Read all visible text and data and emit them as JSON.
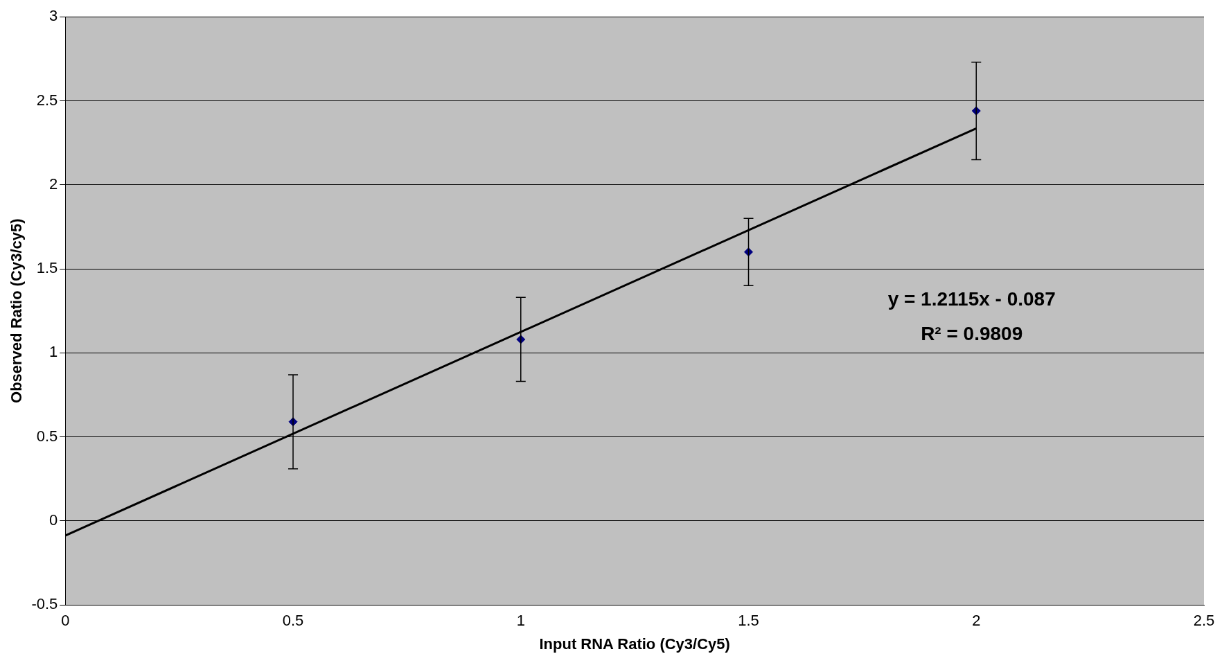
{
  "chart_data": {
    "type": "scatter",
    "xlabel": "Input RNA Ratio (Cy3/Cy5)",
    "ylabel": "Observed Ratio (Cy3/cy5)",
    "x": [
      0.5,
      1,
      1.5,
      2
    ],
    "series": [
      {
        "type": "scatter",
        "marker": "diamond",
        "color": "#000080",
        "values": [
          0.59,
          1.08,
          1.6,
          2.44
        ],
        "errors": [
          0.28,
          0.25,
          0.2,
          0.29
        ]
      },
      {
        "type": "line",
        "marker": "none",
        "color": "#000000",
        "x": [
          0,
          2
        ],
        "values": [
          -0.087,
          2.336
        ]
      }
    ],
    "xlim": [
      0,
      2.5
    ],
    "xticks": [
      0,
      0.5,
      1,
      1.5,
      2,
      2.5
    ],
    "ylim": [
      -0.5,
      3
    ],
    "yticks": [
      -0.5,
      0,
      0.5,
      1,
      1.5,
      2,
      2.5,
      3
    ],
    "grid": "y",
    "legend": false,
    "annotations": [
      "y = 1.2115x - 0.087",
      "R² = 0.9809"
    ]
  }
}
